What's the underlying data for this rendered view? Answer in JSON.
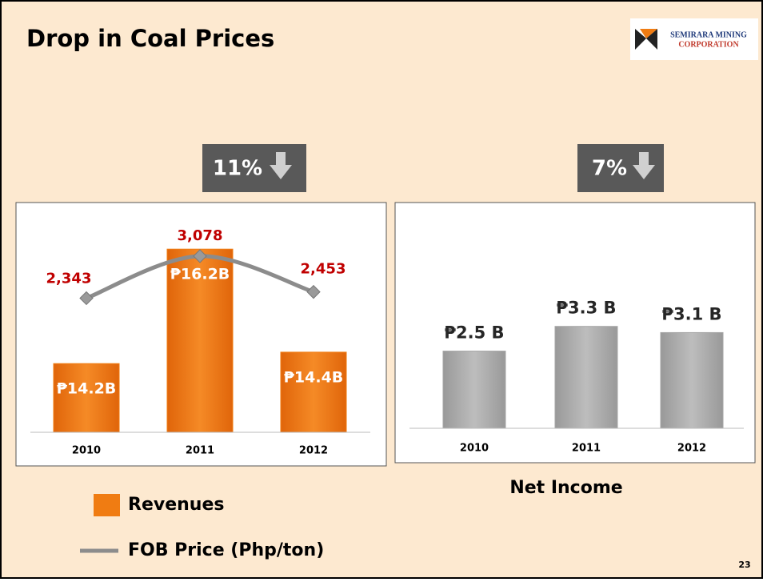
{
  "slide": {
    "title": "Drop in Coal Prices",
    "logo_lines": [
      "SEMIRARA MINING",
      "CORPORATION"
    ],
    "page": "23"
  },
  "chart_data": [
    {
      "type": "bar",
      "badge": "11%",
      "categories": [
        "2010",
        "2011",
        "2012"
      ],
      "ylim": [
        13,
        17
      ],
      "y2lim": [
        0,
        4000
      ],
      "series": [
        {
          "name": "Revenues",
          "type": "bar",
          "color": "#f07c12",
          "values": [
            14.2,
            16.2,
            14.4
          ],
          "value_labels": [
            "₱14.2B",
            "₱16.2B",
            "₱14.4B"
          ]
        },
        {
          "name": "FOB Price (Php/ton)",
          "type": "line",
          "axis": "y2",
          "color": "#8c8c8c",
          "values": [
            2343,
            3078,
            2453
          ],
          "value_labels": [
            "2,343",
            "3,078",
            "2,453"
          ]
        }
      ]
    },
    {
      "type": "bar",
      "title": "Net Income",
      "badge": "7%",
      "categories": [
        "2010",
        "2011",
        "2012"
      ],
      "ylim": [
        0,
        7
      ],
      "series": [
        {
          "type": "bar",
          "color": "#a6a6a6",
          "values": [
            2.5,
            3.3,
            3.1
          ],
          "value_labels": [
            "₱2.5 B",
            "₱3.3 B",
            "₱3.1 B"
          ]
        }
      ]
    }
  ]
}
